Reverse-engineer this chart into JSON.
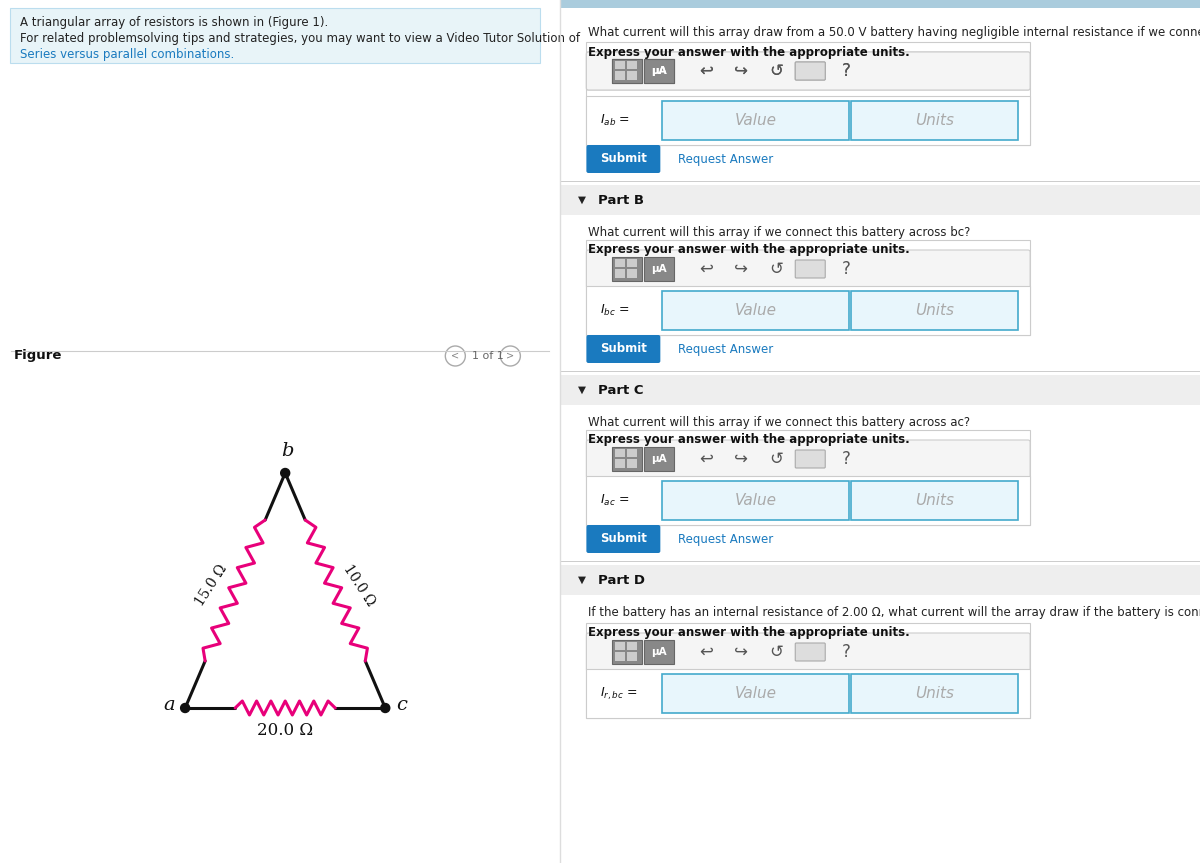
{
  "bg_color": "#ffffff",
  "left_panel_bg": "#e8f4f8",
  "left_panel_text1": "A triangular array of resistors is shown in (Figure 1).",
  "left_panel_text2": "For related problemsolving tips and strategies, you may want to view a Video Tutor Solution of",
  "left_panel_link": "Series versus parallel combinations.",
  "figure_label": "Figure",
  "page_label": "1 of 1",
  "resistor_ab": "15.0 Ω",
  "resistor_bc": "10.0 Ω",
  "resistor_ac": "20.0 Ω",
  "node_a": "a",
  "node_b": "b",
  "node_c": "c",
  "resistor_color": "#e8007a",
  "wire_color": "#111111",
  "part_b_header": "Part B",
  "part_c_header": "Part C",
  "part_d_header": "Part D",
  "submit_color": "#1a7abf",
  "request_answer_color": "#1a7abf",
  "input_box_color": "#e8f6fc",
  "input_border_color": "#44aacc",
  "divider_color": "#cccccc",
  "part_header_bg": "#eeeeee",
  "toolbar_bg": "#f5f5f5",
  "toolbar_border": "#cccccc",
  "outer_box_bg": "#f8f8f8",
  "outer_box_border": "#cccccc",
  "top_bar_color": "#aaccdd",
  "panel_split": 0.467
}
